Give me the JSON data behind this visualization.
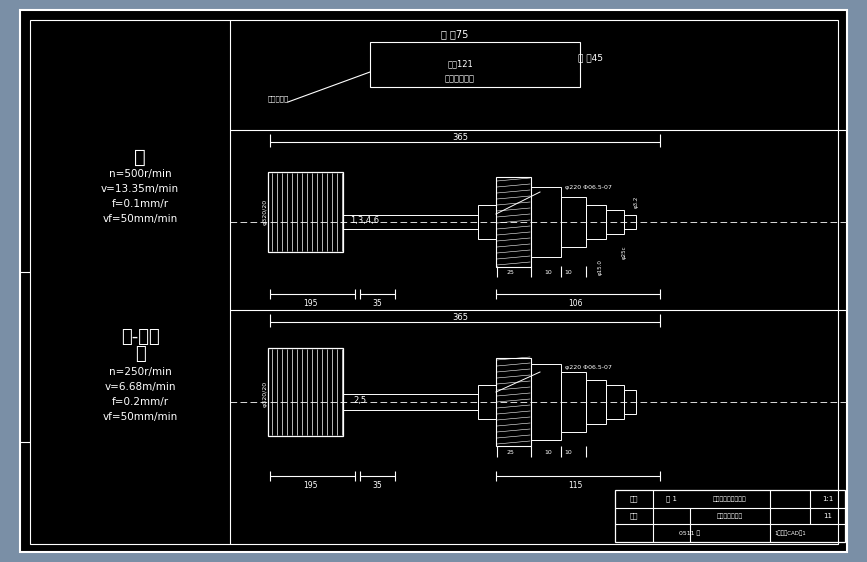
{
  "bg_outer": "#7a8fa6",
  "bg_inner": "#000000",
  "line_color": "#ffffff",
  "text_color": "#ffffff",
  "upper_labels": [
    "钓",
    "n=500r/min",
    "v=13.35m/min",
    "f=0.1mm/r",
    "vf=50mm/min"
  ],
  "lower_labels": [
    "钓-铰复",
    "合",
    "n=250r/min",
    "v=6.68m/min",
    "f=0.2mm/r",
    "vf=50mm/min"
  ],
  "header_line1": "头 逓75",
  "header_line2": "工 进45",
  "header_line3": "快复121",
  "header_line4": "左头工台滑板",
  "header_note": "工作台滑板",
  "dim_365": "365",
  "dim_195_upper": "195",
  "dim_35_upper": "35",
  "dim_106": "106",
  "dim_195_lower": "195",
  "dim_35_lower": "35",
  "dim_115": "115",
  "label_1346": "1,3,4,6",
  "label_25": "2,5",
  "phi_upper": "φ220 Φ06.5-07",
  "phi_lower": "φ220 Φ06.5-07",
  "phi_dia_upper": "φ320/20",
  "phi_dia_lower": "φ320/20",
  "tb_fig": "图题",
  "tb_sheet": "第 1",
  "tb_scale": "1:1",
  "tb_title1": "汽车变速器上盖钓孔",
  "tb_ratio": "比例",
  "tb_title2": "组合机床设计图",
  "tb_num": "11",
  "tb_code": "0511 号",
  "tb_desc": "1号图纸CAD图1"
}
